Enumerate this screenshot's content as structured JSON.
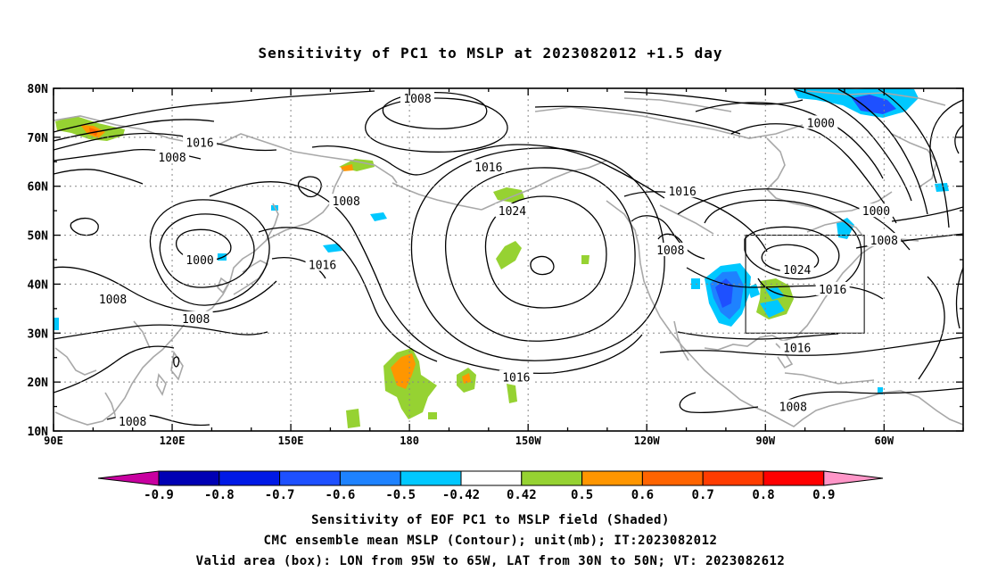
{
  "title": "Sensitivity of PC1 to MSLP at 2023082012 +1.5 day",
  "lat_labels": [
    "80N",
    "70N",
    "60N",
    "50N",
    "40N",
    "30N",
    "20N",
    "10N"
  ],
  "lon_labels": [
    "90E",
    "120E",
    "150E",
    "180",
    "150W",
    "120W",
    "90W",
    "60W"
  ],
  "contour_labels": [
    {
      "text": "1008",
      "lon": -178,
      "lat": 78
    },
    {
      "text": "1000",
      "lon": -76,
      "lat": 73
    },
    {
      "text": "1016",
      "lon": 127,
      "lat": 69
    },
    {
      "text": "1008",
      "lon": 120,
      "lat": 66
    },
    {
      "text": "1016",
      "lon": -160,
      "lat": 64
    },
    {
      "text": "1016",
      "lon": -111,
      "lat": 59
    },
    {
      "text": "1008",
      "lon": 164,
      "lat": 57
    },
    {
      "text": "1024",
      "lon": -154,
      "lat": 55
    },
    {
      "text": "1000",
      "lon": -62,
      "lat": 55
    },
    {
      "text": "1008",
      "lon": -60,
      "lat": 49
    },
    {
      "text": "1008",
      "lon": -114,
      "lat": 47
    },
    {
      "text": "1000",
      "lon": 127,
      "lat": 45
    },
    {
      "text": "1016",
      "lon": 158,
      "lat": 44
    },
    {
      "text": "1024",
      "lon": -82,
      "lat": 43
    },
    {
      "text": "1016",
      "lon": -73,
      "lat": 39
    },
    {
      "text": "1008",
      "lon": 105,
      "lat": 37
    },
    {
      "text": "1008",
      "lon": 126,
      "lat": 33
    },
    {
      "text": "1016",
      "lon": -82,
      "lat": 27
    },
    {
      "text": "1016",
      "lon": -153,
      "lat": 21
    },
    {
      "text": "1008",
      "lon": -83,
      "lat": 15
    },
    {
      "text": "1008",
      "lon": 110,
      "lat": 12
    }
  ],
  "valid_box": {
    "lon_min": -95,
    "lon_max": -65,
    "lat_min": 30,
    "lat_max": 50
  },
  "colorbar": {
    "labels": [
      "-0.9",
      "-0.8",
      "-0.7",
      "-0.6",
      "-0.5",
      "-0.42",
      "0.42",
      "0.5",
      "0.6",
      "0.7",
      "0.8",
      "0.9"
    ],
    "colors": [
      "#0000b4",
      "#0019e6",
      "#1e50ff",
      "#1e82ff",
      "#00c8ff",
      "#ffffff",
      "#96d232",
      "#ff9600",
      "#ff6400",
      "#ff3c00",
      "#ff0000"
    ],
    "low_arrow_color": "#c800a0",
    "high_arrow_color": "#ff96c8"
  },
  "caption": {
    "line1": "Sensitivity of EOF PC1 to MSLP field (Shaded)",
    "line2": "CMC ensemble mean MSLP (Contour); unit(mb); IT:2023082012",
    "line3": "Valid area (box): LON from 95W to 65W, LAT from 30N to 50N; VT: 2023082612"
  }
}
